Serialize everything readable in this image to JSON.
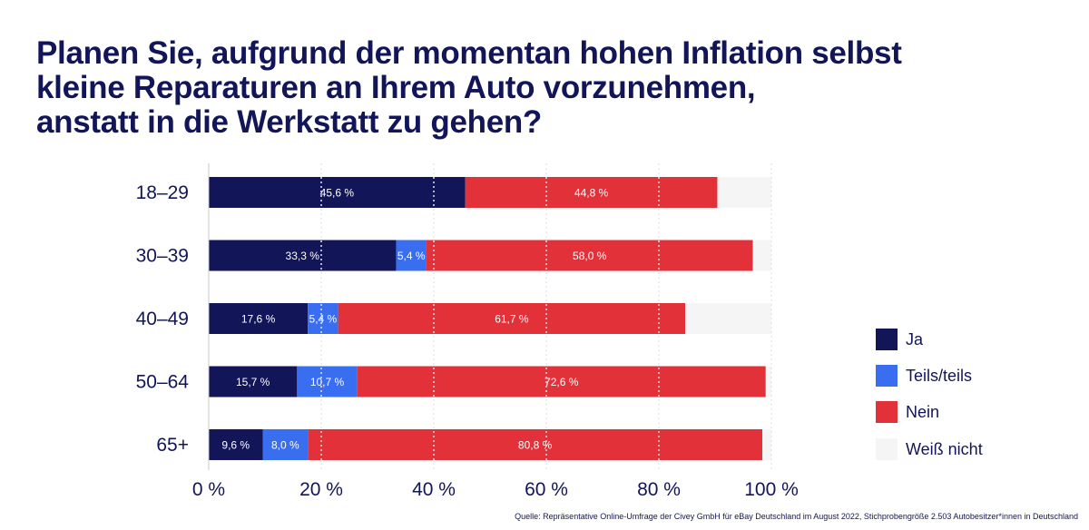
{
  "title_lines": [
    "Planen Sie, aufgrund der momentan hohen Inflation selbst",
    "kleine Reparaturen an Ihrem Auto vorzunehmen,",
    "anstatt in die Werkstatt zu gehen?"
  ],
  "source": "Quelle: Repräsentative Online-Umfrage der Civey GmbH für eBay Deutschland im August 2022, Stichprobengröße 2.503 Autobesitzer*innen in Deutschland",
  "colors": {
    "Ja": "#121558",
    "Teils/teils": "#3a6ef0",
    "Nein": "#e3313a",
    "Weiß nicht": "#f5f5f5",
    "text": "#121558"
  },
  "chart_data": {
    "type": "bar",
    "orientation": "horizontal",
    "stacked": true,
    "title": "Planen Sie, aufgrund der momentan hohen Inflation selbst kleine Reparaturen an Ihrem Auto vorzunehmen, anstatt in die Werkstatt zu gehen?",
    "categories": [
      "18–29",
      "30–39",
      "40–49",
      "50–64",
      "65+"
    ],
    "series": [
      {
        "name": "Ja",
        "values": [
          45.6,
          33.3,
          17.6,
          15.7,
          9.6
        ],
        "labels": [
          "45,6 %",
          "33,3 %",
          "17,6 %",
          "15,7 %",
          "9,6 %"
        ]
      },
      {
        "name": "Teils/teils",
        "values": [
          0,
          5.4,
          5.4,
          10.7,
          8.0
        ],
        "labels": [
          "",
          "5,4 %",
          "5,4 %",
          "10,7 %",
          "8,0 %"
        ]
      },
      {
        "name": "Nein",
        "values": [
          44.8,
          58.0,
          61.7,
          72.6,
          80.8
        ],
        "labels": [
          "44,8 %",
          "58,0 %",
          "61,7 %",
          "72,6 %",
          "80,8 %"
        ]
      },
      {
        "name": "Weiß nicht",
        "values": [
          9.6,
          3.3,
          15.3,
          1.0,
          1.6
        ],
        "labels": [
          "",
          "",
          "",
          "",
          ""
        ]
      }
    ],
    "xlim": [
      0,
      100
    ],
    "xticks": [
      0,
      20,
      40,
      60,
      80,
      100
    ],
    "xtick_labels": [
      "0 %",
      "20 %",
      "40 %",
      "60 %",
      "80 %",
      "100 %"
    ],
    "grid": true,
    "legend": "right",
    "legend_entries": [
      "Ja",
      "Teils/teils",
      "Nein",
      "Weiß nicht"
    ]
  }
}
